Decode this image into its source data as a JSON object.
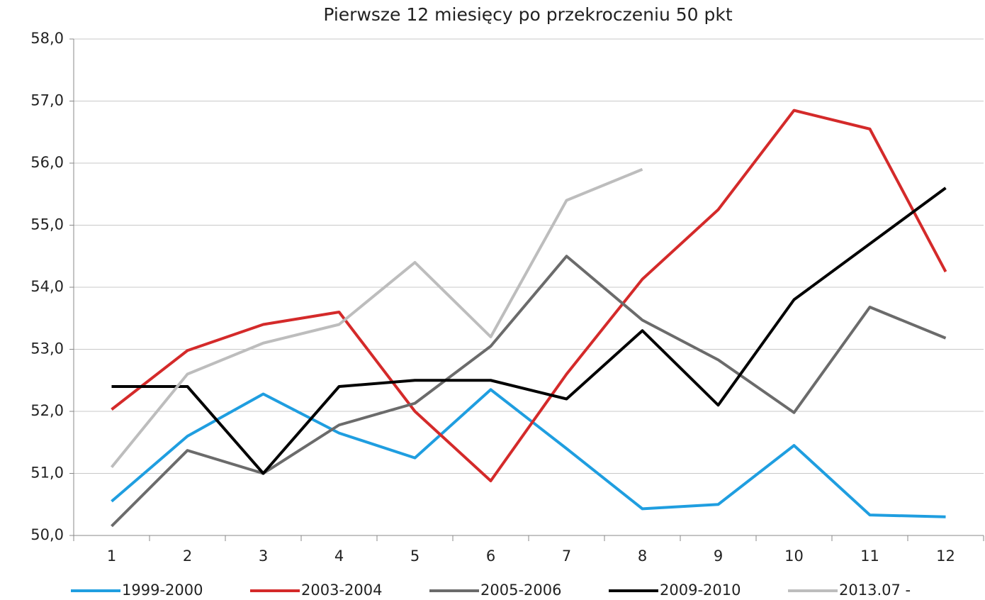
{
  "chart_data": {
    "type": "line",
    "title": "Pierwsze 12 miesięcy po przekroczeniu 50 pkt",
    "categories": [
      "1",
      "2",
      "3",
      "4",
      "5",
      "6",
      "7",
      "8",
      "9",
      "10",
      "11",
      "12"
    ],
    "series": [
      {
        "name": "1999-2000",
        "color": "#1f9ee0",
        "values": [
          50.55,
          51.6,
          52.28,
          51.65,
          51.25,
          52.35,
          51.4,
          50.43,
          50.5,
          51.45,
          50.33,
          50.3
        ]
      },
      {
        "name": "2003-2004",
        "color": "#d42a2a",
        "values": [
          52.03,
          52.98,
          53.4,
          53.6,
          52.0,
          50.88,
          52.6,
          54.13,
          55.25,
          56.85,
          56.55,
          54.25
        ]
      },
      {
        "name": "2005-2006",
        "color": "#6b6b6b",
        "values": [
          50.15,
          51.37,
          51.0,
          51.78,
          52.13,
          53.05,
          54.5,
          53.47,
          52.83,
          51.98,
          53.68,
          53.18
        ]
      },
      {
        "name": "2009-2010",
        "color": "#000000",
        "values": [
          52.4,
          52.4,
          51.0,
          52.4,
          52.5,
          52.5,
          52.2,
          53.3,
          52.1,
          53.8,
          54.7,
          55.6
        ]
      },
      {
        "name": "2013.07 -",
        "color": "#bdbdbd",
        "values": [
          51.1,
          52.6,
          53.1,
          53.4,
          54.4,
          53.2,
          55.4,
          55.9,
          null,
          null,
          null,
          null
        ]
      }
    ],
    "ylim": [
      50,
      58
    ],
    "yticks": [
      {
        "value": 50,
        "label": "50,0"
      },
      {
        "value": 51,
        "label": "51,0"
      },
      {
        "value": 52,
        "label": "52,0"
      },
      {
        "value": 53,
        "label": "53,0"
      },
      {
        "value": 54,
        "label": "54,0"
      },
      {
        "value": 55,
        "label": "55,0"
      },
      {
        "value": 56,
        "label": "56,0"
      },
      {
        "value": 57,
        "label": "57,0"
      },
      {
        "value": 58,
        "label": "58,0"
      }
    ],
    "grid": true,
    "legend": "bottom"
  }
}
